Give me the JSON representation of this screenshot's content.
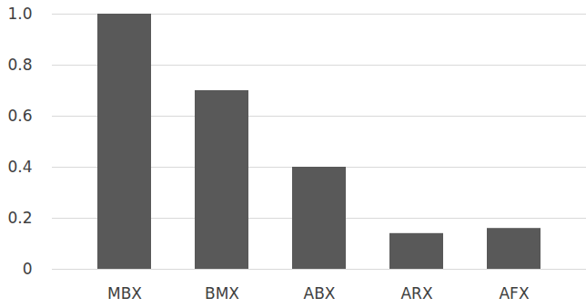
{
  "chart_data": {
    "type": "bar",
    "categories": [
      "MBX",
      "BMX",
      "ABX",
      "ARX",
      "AFX"
    ],
    "values": [
      1.0,
      0.7,
      0.4,
      0.14,
      0.16
    ],
    "color": "#595959",
    "ylim": [
      0,
      1
    ],
    "yticks": [
      0,
      0.2,
      0.4,
      0.6,
      0.8,
      {
        "value": 1,
        "label": "1.0"
      }
    ],
    "grid": true
  }
}
